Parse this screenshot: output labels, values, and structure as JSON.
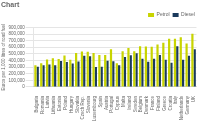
{
  "chart_data": {
    "type": "bar",
    "title": "Chart",
    "ylabel": "Euros per 1,000 litres of road fuel",
    "categories": [
      "Bulgaria",
      "Romania",
      "Latvia",
      "Lithuania",
      "Estonia",
      "Poland",
      "Hungary",
      "Slovakia",
      "Czech Rep.",
      "Slovenia",
      "Luxembourg",
      "Spain",
      "Austria",
      "Portugal",
      "Cyprus",
      "Malta",
      "Ireland",
      "Sweden",
      "Belgium",
      "Denmark",
      "France",
      "Finland",
      "Greece",
      "Croatia",
      "Italy",
      "Netherlands",
      "Germany",
      "UK"
    ],
    "series": [
      {
        "name": "Petrol",
        "color": "#c8d400",
        "values": [
          330000,
          359000,
          414000,
          434000,
          422000,
          476000,
          411000,
          515000,
          536000,
          532000,
          515000,
          484000,
          482000,
          570000,
          359000,
          540000,
          587000,
          540000,
          614000,
          611000,
          607000,
          641000,
          670000,
          730000,
          728000,
          752000,
          655000,
          805000
        ]
      },
      {
        "name": "Diesel",
        "color": "#1a3a5c",
        "values": [
          307000,
          328000,
          341000,
          330000,
          392000,
          376000,
          353000,
          386000,
          472000,
          463000,
          302000,
          307000,
          397000,
          390000,
          330000,
          453000,
          479000,
          509000,
          427000,
          381000,
          428000,
          483000,
          410000,
          366000,
          617000,
          413000,
          470000,
          570000
        ]
      }
    ],
    "ylim": [
      0,
      900000
    ],
    "yticks": [
      0,
      {
        "value": 100000,
        "label": "100,000"
      },
      {
        "value": 200000,
        "label": "200,000"
      },
      {
        "value": 300000,
        "label": "300,000"
      },
      {
        "value": 400000,
        "label": "400,000"
      },
      {
        "value": 500000,
        "label": "500,000"
      },
      {
        "value": 600000,
        "label": "600,000"
      },
      {
        "value": 700000,
        "label": "700,000"
      },
      {
        "value": 800000,
        "label": "800,000"
      },
      {
        "value": 900000,
        "label": "900,000"
      }
    ],
    "grid": true,
    "legend": "upper right"
  }
}
